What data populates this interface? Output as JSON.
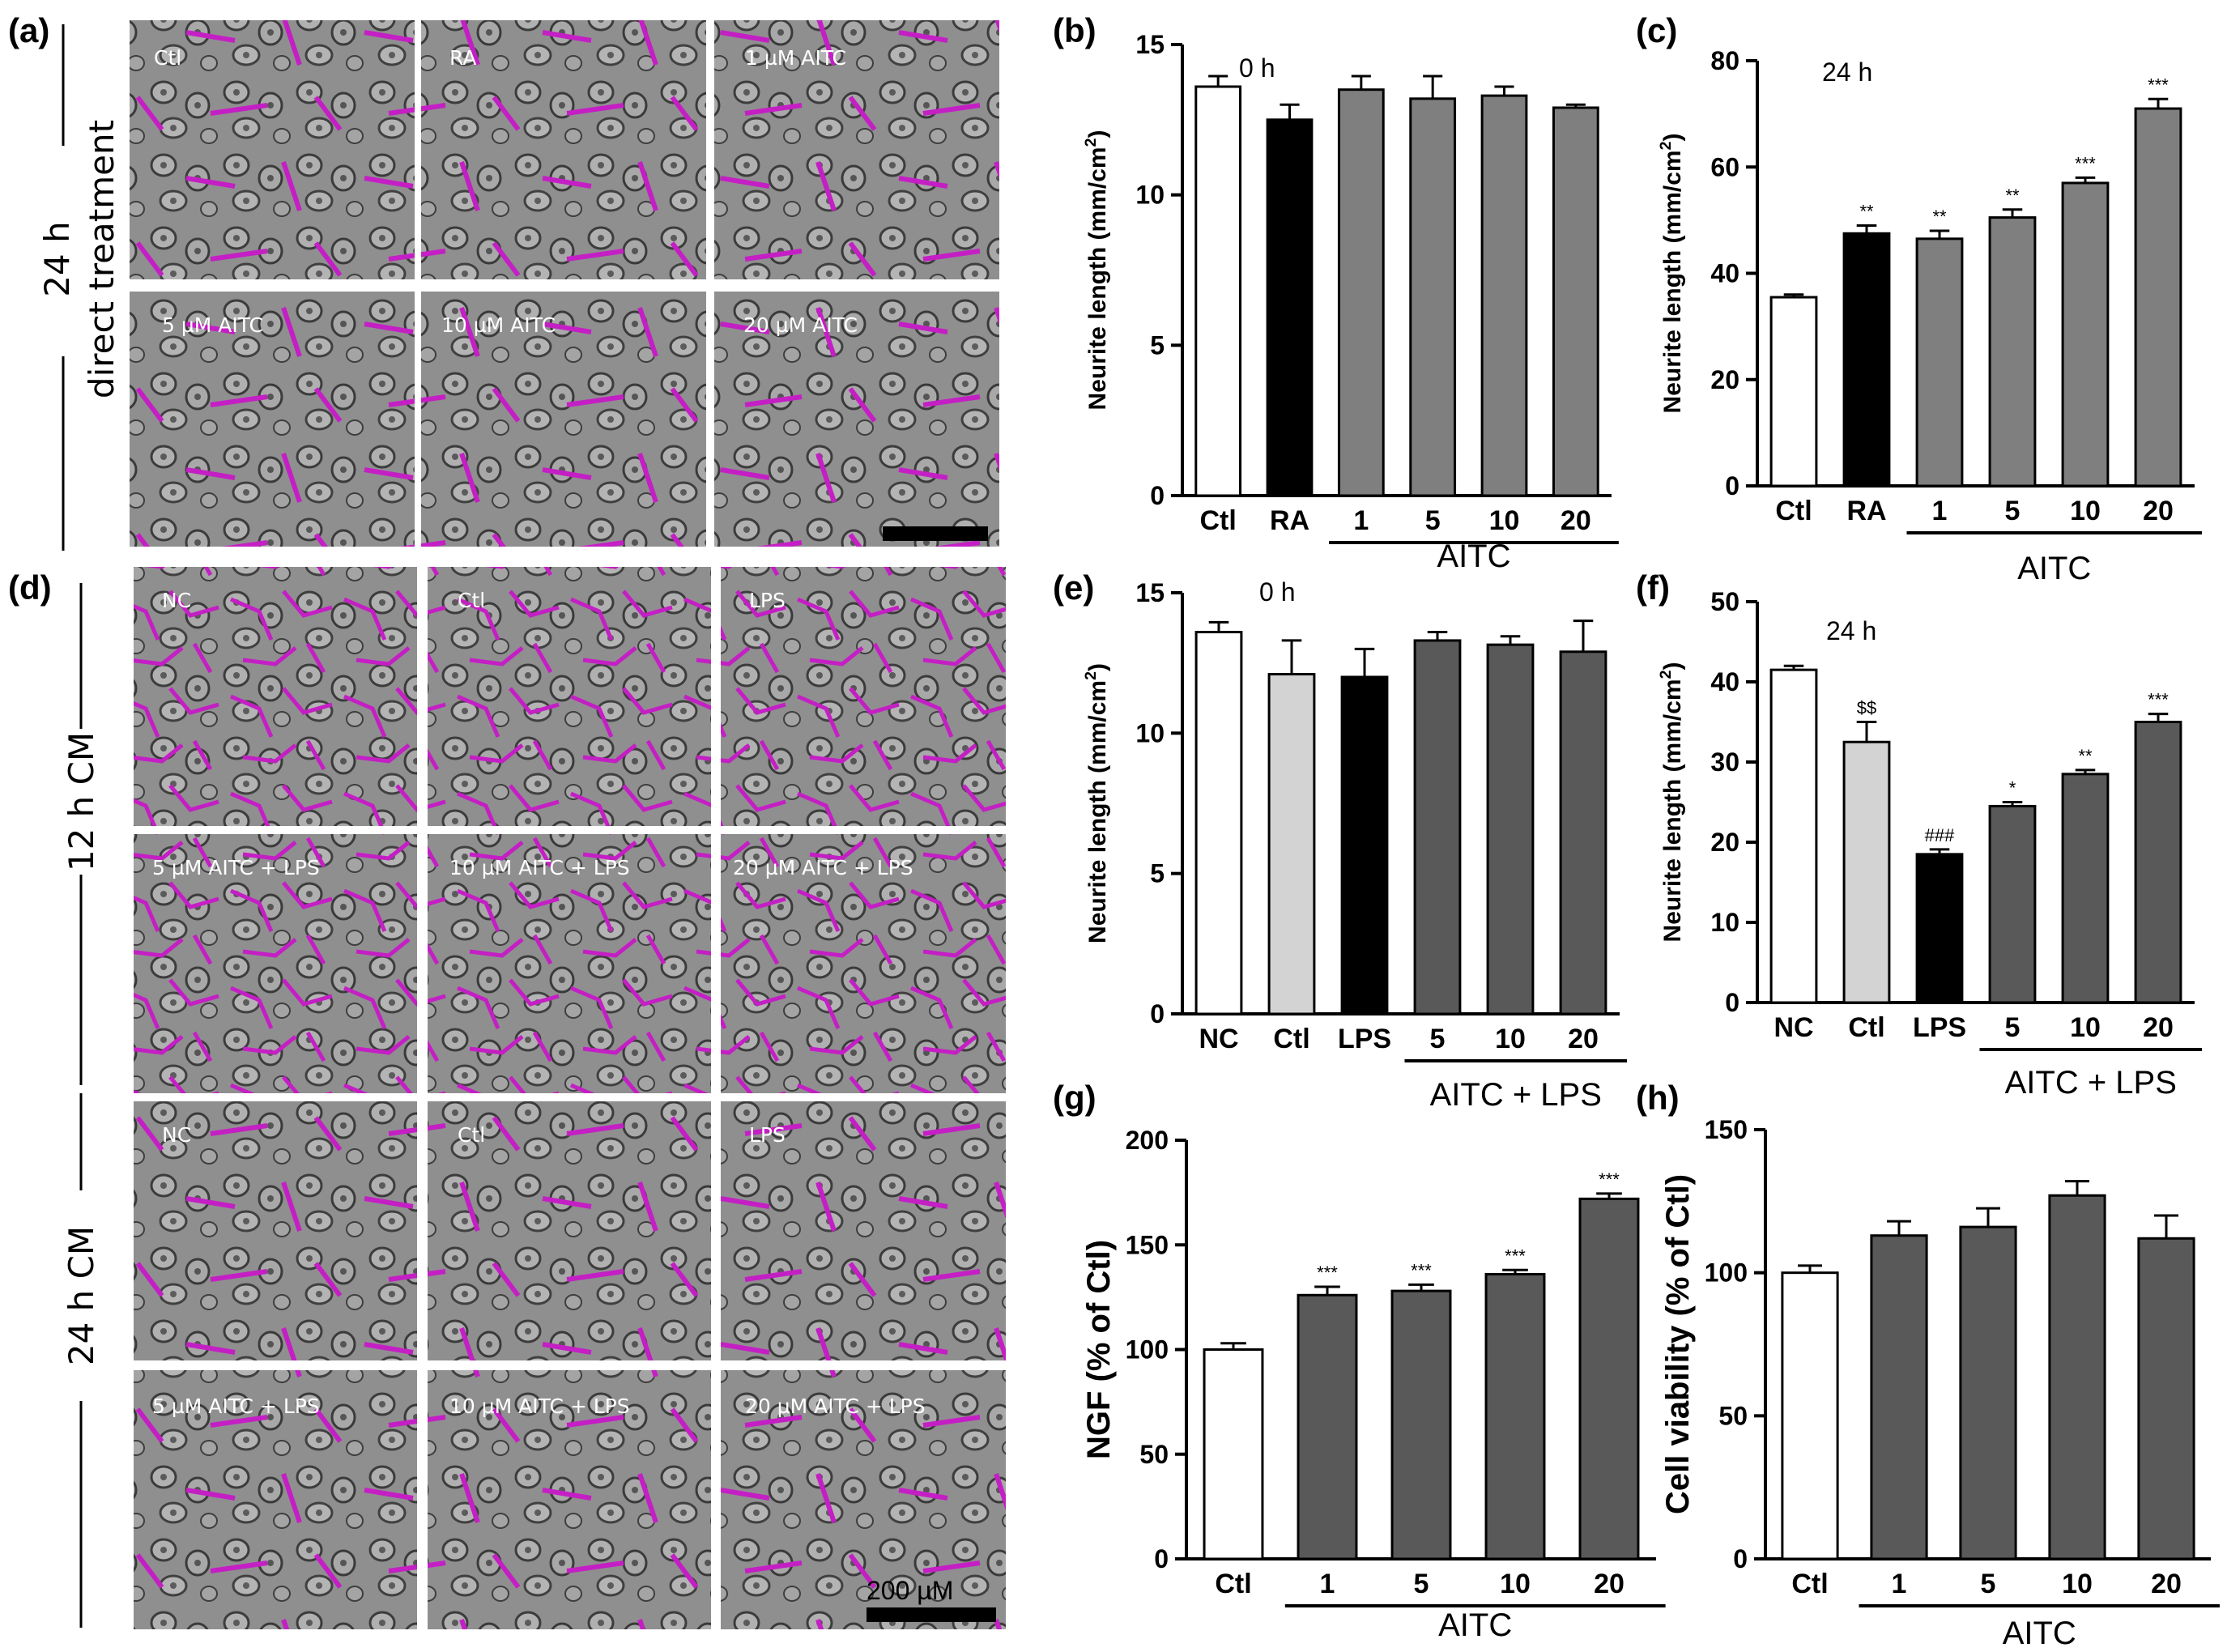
{
  "panel_letters": {
    "a": "(a)",
    "b": "(b)",
    "c": "(c)",
    "d": "(d)",
    "e": "(e)",
    "f": "(f)",
    "g": "(g)",
    "h": "(h)"
  },
  "panel_a": {
    "side_label_1": "24 h",
    "side_label_2": "direct treatment",
    "tiles": [
      "Ctl",
      "RA",
      "1 µM AITC",
      "5 µM AITC",
      "10 µM AITC",
      "20 µM AITC"
    ]
  },
  "panel_d": {
    "side_label_12h": "12 h CM",
    "side_label_24h": "24 h CM",
    "tiles_12h": [
      "NC",
      "Ctl",
      "LPS",
      "5 µM AITC + LPS",
      "10 µM AITC + LPS",
      "20 µM AITC + LPS"
    ],
    "tiles_24h": [
      "NC",
      "Ctl",
      "LPS",
      "5 µM AITC + LPS",
      "10 µM AITC + LPS",
      "20 µM AITC + LPS"
    ],
    "scale_bar": "200 µM"
  },
  "colors": {
    "white": "#ffffff",
    "black": "#000000",
    "mid_gray": "#7f7f7f",
    "light_gray": "#d3d3d3",
    "dark_gray": "#595959",
    "neurite": "#c41fc4"
  },
  "chart_data": [
    {
      "id": "b",
      "type": "bar",
      "annotation": "0 h",
      "categories": [
        "Ctl",
        "RA",
        "1",
        "5",
        "10",
        "20"
      ],
      "values": [
        13.6,
        12.5,
        13.5,
        13.2,
        13.3,
        12.9
      ],
      "errors": [
        0.35,
        0.5,
        0.45,
        0.75,
        0.3,
        0.1
      ],
      "fills": [
        "white",
        "black",
        "mid_gray",
        "mid_gray",
        "mid_gray",
        "mid_gray"
      ],
      "ylabel": "Neurite length (mm/cm2)",
      "ylim": [
        0,
        15
      ],
      "yticks": [
        0,
        5,
        10,
        15
      ],
      "group_label": "AITC",
      "group_range": [
        2,
        5
      ],
      "significance": [
        "",
        "",
        "",
        "",
        "",
        ""
      ]
    },
    {
      "id": "c",
      "type": "bar",
      "annotation": "24 h",
      "categories": [
        "Ctl",
        "RA",
        "1",
        "5",
        "10",
        "20"
      ],
      "values": [
        35.5,
        47.5,
        46.5,
        50.5,
        57,
        71
      ],
      "errors": [
        0.5,
        1.5,
        1.5,
        1.5,
        1.0,
        1.8
      ],
      "fills": [
        "white",
        "black",
        "mid_gray",
        "mid_gray",
        "mid_gray",
        "mid_gray"
      ],
      "ylabel": "Neurite length (mm/cm2)",
      "ylim": [
        0,
        80
      ],
      "yticks": [
        0,
        20,
        40,
        60,
        80
      ],
      "group_label": "AITC",
      "group_range": [
        2,
        5
      ],
      "significance": [
        "",
        "**",
        "**",
        "**",
        "***",
        "***"
      ]
    },
    {
      "id": "e",
      "type": "bar",
      "annotation": "0 h",
      "categories": [
        "NC",
        "Ctl",
        "LPS",
        "5",
        "10",
        "20"
      ],
      "values": [
        13.6,
        12.1,
        12.0,
        13.3,
        13.15,
        12.9
      ],
      "errors": [
        0.35,
        1.2,
        1.0,
        0.3,
        0.3,
        1.1
      ],
      "fills": [
        "white",
        "light_gray",
        "black",
        "dark_gray",
        "dark_gray",
        "dark_gray"
      ],
      "ylabel": "Neurite length (mm/cm2)",
      "ylim": [
        0,
        15
      ],
      "yticks": [
        0,
        5,
        10,
        15
      ],
      "group_label": "AITC + LPS",
      "group_range": [
        3,
        5
      ],
      "significance": [
        "",
        "",
        "",
        "",
        "",
        ""
      ]
    },
    {
      "id": "f",
      "type": "bar",
      "annotation": "24 h",
      "categories": [
        "NC",
        "Ctl",
        "LPS",
        "5",
        "10",
        "20"
      ],
      "values": [
        41.5,
        32.5,
        18.5,
        24.5,
        28.5,
        35
      ],
      "errors": [
        0.5,
        2.5,
        0.6,
        0.5,
        0.5,
        1.0
      ],
      "fills": [
        "white",
        "light_gray",
        "black",
        "dark_gray",
        "dark_gray",
        "dark_gray"
      ],
      "ylabel": "Neurite length (mm/cm2)",
      "ylim": [
        0,
        50
      ],
      "yticks": [
        0,
        10,
        20,
        30,
        40,
        50
      ],
      "group_label": "AITC + LPS",
      "group_range": [
        3,
        5
      ],
      "significance": [
        "",
        "$$",
        "###",
        "*",
        "**",
        "***"
      ]
    },
    {
      "id": "g",
      "type": "bar",
      "annotation": "",
      "categories": [
        "Ctl",
        "1",
        "5",
        "10",
        "20"
      ],
      "values": [
        100,
        126,
        128,
        136,
        172
      ],
      "errors": [
        3,
        4,
        3,
        2,
        2.5
      ],
      "fills": [
        "white",
        "dark_gray",
        "dark_gray",
        "dark_gray",
        "dark_gray"
      ],
      "ylabel": "NGF (% of Ctl)",
      "ylim": [
        0,
        200
      ],
      "yticks": [
        0,
        50,
        100,
        150,
        200
      ],
      "group_label": "AITC",
      "group_range": [
        1,
        4
      ],
      "significance": [
        "",
        "***",
        "***",
        "***",
        "***"
      ]
    },
    {
      "id": "h",
      "type": "bar",
      "annotation": "",
      "categories": [
        "Ctl",
        "1",
        "5",
        "10",
        "20"
      ],
      "values": [
        100,
        113,
        116,
        127,
        112
      ],
      "errors": [
        2.5,
        5,
        6.5,
        5,
        8
      ],
      "fills": [
        "white",
        "dark_gray",
        "dark_gray",
        "dark_gray",
        "dark_gray"
      ],
      "ylabel": "Cell viability (% of Ctl)",
      "ylim": [
        0,
        150
      ],
      "yticks": [
        0,
        50,
        100,
        150
      ],
      "group_label": "AITC",
      "group_range": [
        1,
        4
      ],
      "significance": [
        "",
        "",
        "",
        "",
        ""
      ]
    }
  ]
}
